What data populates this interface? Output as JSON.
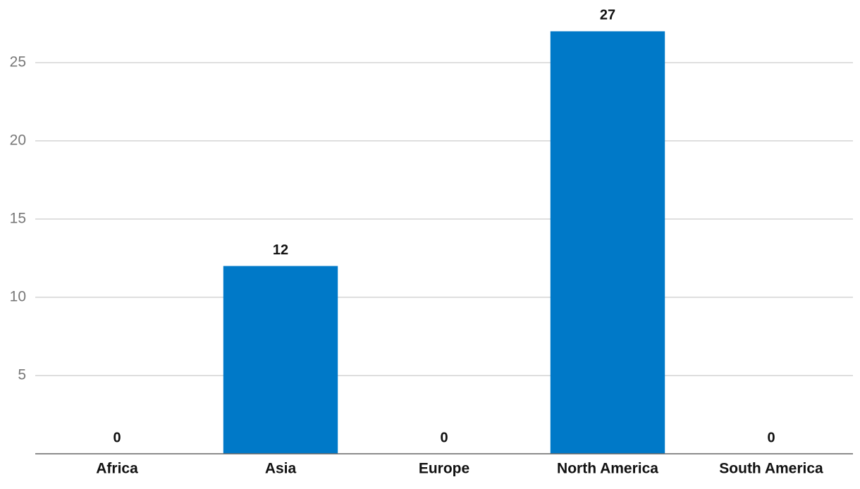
{
  "chart_data": {
    "type": "bar",
    "categories": [
      "Africa",
      "Asia",
      "Europe",
      "North America",
      "South America"
    ],
    "values": [
      0,
      12,
      0,
      27,
      0
    ],
    "color": "#0079c8",
    "ylim": [
      0,
      29
    ],
    "yticks": [
      5,
      10,
      15,
      20,
      25
    ],
    "grid": true
  }
}
